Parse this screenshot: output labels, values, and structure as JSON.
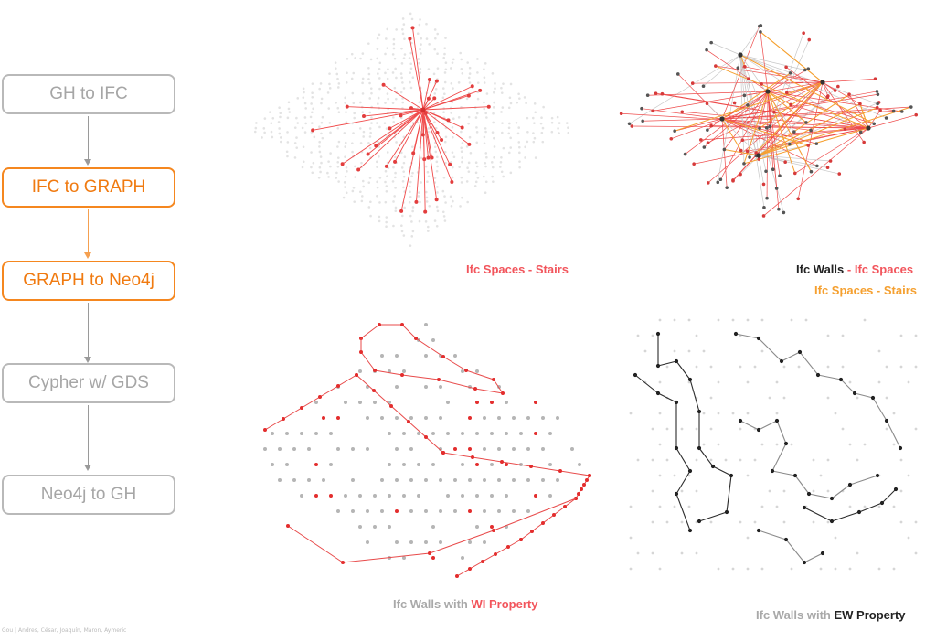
{
  "flow": {
    "steps": [
      {
        "label": "GH to IFC",
        "active": false
      },
      {
        "label": "IFC to GRAPH",
        "active": true
      },
      {
        "label": "GRAPH to Neo4j",
        "active": true
      },
      {
        "label": "Cypher w/ GDS",
        "active": false
      },
      {
        "label": "Neo4j to GH",
        "active": false
      }
    ]
  },
  "captions": {
    "spaces_stairs": "Ifc Spaces - Stairs",
    "walls_spaces_a": "Ifc Walls",
    "walls_spaces_sep": " - ",
    "walls_spaces_b": "Ifc Spaces",
    "walls_spaces_line2": "Ifc Spaces - Stairs",
    "wi_a": "Ifc Walls with ",
    "wi_b": "WI Property",
    "ew_a": "Ifc Walls with ",
    "ew_b": "EW Property"
  },
  "credit": "Gou | Andres, César, Joaquín, Maron, Aymeric",
  "colors": {
    "orange": "#f5871f",
    "red": "#f2555c",
    "grey": "#b9b9b9",
    "dark": "#222222"
  }
}
